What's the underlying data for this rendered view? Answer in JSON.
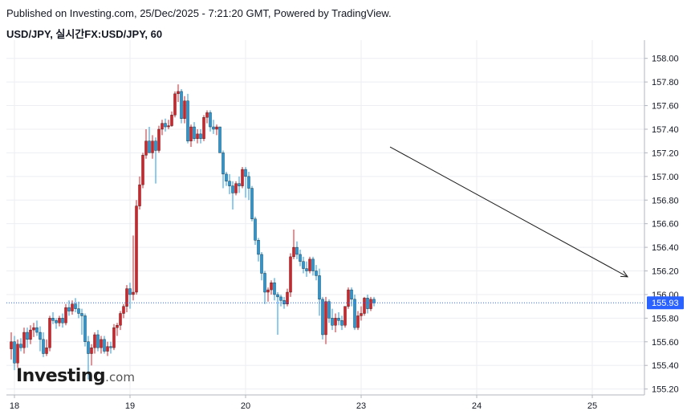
{
  "header": {
    "published": "Published on Investing.com, 25/Dec/2025 - 7:21:20 GMT, Powered by TradingView.",
    "symbol": "USD/JPY, 실시간FX:USD/JPY, 60"
  },
  "logo": {
    "main": "Investing",
    "suffix": ".com"
  },
  "colors": {
    "up": "#e31b23",
    "down": "#1e9ae0",
    "grid": "#eceef2",
    "axis": "#b2b5be",
    "price_line": "#2962ff",
    "price_label_bg": "#2962ff",
    "trend_line": "#1c1c1c"
  },
  "chart_data": {
    "type": "candlestick",
    "timeframe": "60",
    "ylim": [
      155.15,
      158.1
    ],
    "y_ticks": [
      "158.00",
      "157.80",
      "157.60",
      "157.40",
      "157.20",
      "157.00",
      "156.80",
      "156.60",
      "156.40",
      "156.20",
      "156.00",
      "155.80",
      "155.60",
      "155.40",
      "155.20"
    ],
    "x_ticks": [
      "18",
      "19",
      "20",
      "23",
      "24",
      "25"
    ],
    "x_tick_index": [
      1,
      37,
      73,
      109,
      145,
      181
    ],
    "last_price": "155.93",
    "last_price_value": 155.93,
    "trend_line": {
      "start": {
        "index": 118,
        "price": 157.25
      },
      "end": {
        "index": 192,
        "price": 156.15
      }
    },
    "candles": [
      {
        "o": 155.54,
        "h": 155.68,
        "l": 155.45,
        "c": 155.6
      },
      {
        "o": 155.6,
        "h": 155.65,
        "l": 155.36,
        "c": 155.42
      },
      {
        "o": 155.42,
        "h": 155.62,
        "l": 155.38,
        "c": 155.58
      },
      {
        "o": 155.58,
        "h": 155.63,
        "l": 155.52,
        "c": 155.55
      },
      {
        "o": 155.55,
        "h": 155.72,
        "l": 155.5,
        "c": 155.68
      },
      {
        "o": 155.68,
        "h": 155.72,
        "l": 155.55,
        "c": 155.62
      },
      {
        "o": 155.62,
        "h": 155.74,
        "l": 155.58,
        "c": 155.7
      },
      {
        "o": 155.7,
        "h": 155.76,
        "l": 155.64,
        "c": 155.72
      },
      {
        "o": 155.72,
        "h": 155.78,
        "l": 155.65,
        "c": 155.68
      },
      {
        "o": 155.68,
        "h": 155.73,
        "l": 155.52,
        "c": 155.62
      },
      {
        "o": 155.62,
        "h": 155.68,
        "l": 155.47,
        "c": 155.5
      },
      {
        "o": 155.5,
        "h": 155.62,
        "l": 155.48,
        "c": 155.55
      },
      {
        "o": 155.55,
        "h": 155.82,
        "l": 155.52,
        "c": 155.8
      },
      {
        "o": 155.8,
        "h": 155.85,
        "l": 155.75,
        "c": 155.78
      },
      {
        "o": 155.78,
        "h": 155.8,
        "l": 155.71,
        "c": 155.76
      },
      {
        "o": 155.76,
        "h": 155.82,
        "l": 155.73,
        "c": 155.8
      },
      {
        "o": 155.8,
        "h": 155.84,
        "l": 155.72,
        "c": 155.76
      },
      {
        "o": 155.76,
        "h": 155.92,
        "l": 155.74,
        "c": 155.89
      },
      {
        "o": 155.89,
        "h": 155.95,
        "l": 155.82,
        "c": 155.86
      },
      {
        "o": 155.86,
        "h": 155.95,
        "l": 155.83,
        "c": 155.92
      },
      {
        "o": 155.92,
        "h": 155.97,
        "l": 155.85,
        "c": 155.88
      },
      {
        "o": 155.88,
        "h": 155.94,
        "l": 155.8,
        "c": 155.84
      },
      {
        "o": 155.84,
        "h": 155.88,
        "l": 155.66,
        "c": 155.82
      },
      {
        "o": 155.82,
        "h": 155.84,
        "l": 155.56,
        "c": 155.6
      },
      {
        "o": 155.6,
        "h": 155.65,
        "l": 155.28,
        "c": 155.5
      },
      {
        "o": 155.5,
        "h": 155.58,
        "l": 155.4,
        "c": 155.55
      },
      {
        "o": 155.55,
        "h": 155.68,
        "l": 155.5,
        "c": 155.66
      },
      {
        "o": 155.66,
        "h": 155.7,
        "l": 155.52,
        "c": 155.55
      },
      {
        "o": 155.55,
        "h": 155.65,
        "l": 155.5,
        "c": 155.62
      },
      {
        "o": 155.62,
        "h": 155.65,
        "l": 155.5,
        "c": 155.52
      },
      {
        "o": 155.52,
        "h": 155.6,
        "l": 155.48,
        "c": 155.56
      },
      {
        "o": 155.56,
        "h": 155.6,
        "l": 155.5,
        "c": 155.55
      },
      {
        "o": 155.55,
        "h": 155.75,
        "l": 155.53,
        "c": 155.72
      },
      {
        "o": 155.72,
        "h": 155.76,
        "l": 155.65,
        "c": 155.74
      },
      {
        "o": 155.74,
        "h": 155.86,
        "l": 155.7,
        "c": 155.84
      },
      {
        "o": 155.84,
        "h": 155.92,
        "l": 155.8,
        "c": 155.9
      },
      {
        "o": 155.9,
        "h": 156.08,
        "l": 155.85,
        "c": 156.05
      },
      {
        "o": 156.05,
        "h": 156.1,
        "l": 155.88,
        "c": 156.0
      },
      {
        "o": 156.0,
        "h": 156.5,
        "l": 155.95,
        "c": 156.02
      },
      {
        "o": 156.02,
        "h": 156.8,
        "l": 156.0,
        "c": 156.75
      },
      {
        "o": 156.75,
        "h": 157.0,
        "l": 156.72,
        "c": 156.93
      },
      {
        "o": 156.93,
        "h": 157.2,
        "l": 156.9,
        "c": 157.18
      },
      {
        "o": 157.18,
        "h": 157.4,
        "l": 157.15,
        "c": 157.3
      },
      {
        "o": 157.3,
        "h": 157.42,
        "l": 157.22,
        "c": 157.2
      },
      {
        "o": 157.2,
        "h": 157.35,
        "l": 157.15,
        "c": 157.3
      },
      {
        "o": 157.3,
        "h": 157.33,
        "l": 156.94,
        "c": 157.22
      },
      {
        "o": 157.22,
        "h": 157.43,
        "l": 157.2,
        "c": 157.4
      },
      {
        "o": 157.4,
        "h": 157.48,
        "l": 157.35,
        "c": 157.45
      },
      {
        "o": 157.45,
        "h": 157.49,
        "l": 157.38,
        "c": 157.42
      },
      {
        "o": 157.42,
        "h": 157.48,
        "l": 157.4,
        "c": 157.43
      },
      {
        "o": 157.43,
        "h": 157.55,
        "l": 157.42,
        "c": 157.52
      },
      {
        "o": 157.52,
        "h": 157.72,
        "l": 157.5,
        "c": 157.7
      },
      {
        "o": 157.7,
        "h": 157.78,
        "l": 157.63,
        "c": 157.72
      },
      {
        "o": 157.72,
        "h": 157.74,
        "l": 157.45,
        "c": 157.49
      },
      {
        "o": 157.49,
        "h": 157.68,
        "l": 157.45,
        "c": 157.64
      },
      {
        "o": 157.64,
        "h": 157.7,
        "l": 157.28,
        "c": 157.3
      },
      {
        "o": 157.3,
        "h": 157.44,
        "l": 157.25,
        "c": 157.42
      },
      {
        "o": 157.42,
        "h": 157.46,
        "l": 157.3,
        "c": 157.32
      },
      {
        "o": 157.32,
        "h": 157.4,
        "l": 157.28,
        "c": 157.36
      },
      {
        "o": 157.36,
        "h": 157.4,
        "l": 157.28,
        "c": 157.32
      },
      {
        "o": 157.32,
        "h": 157.52,
        "l": 157.3,
        "c": 157.5
      },
      {
        "o": 157.5,
        "h": 157.56,
        "l": 157.45,
        "c": 157.54
      },
      {
        "o": 157.54,
        "h": 157.56,
        "l": 157.38,
        "c": 157.42
      },
      {
        "o": 157.42,
        "h": 157.48,
        "l": 157.36,
        "c": 157.4
      },
      {
        "o": 157.4,
        "h": 157.44,
        "l": 157.35,
        "c": 157.42
      },
      {
        "o": 157.42,
        "h": 157.42,
        "l": 157.2,
        "c": 157.2
      },
      {
        "o": 157.2,
        "h": 157.22,
        "l": 156.9,
        "c": 157.02
      },
      {
        "o": 157.02,
        "h": 157.04,
        "l": 156.92,
        "c": 156.96
      },
      {
        "o": 156.96,
        "h": 157.02,
        "l": 156.85,
        "c": 156.92
      },
      {
        "o": 156.92,
        "h": 156.96,
        "l": 156.72,
        "c": 156.86
      },
      {
        "o": 156.86,
        "h": 156.96,
        "l": 156.84,
        "c": 156.94
      },
      {
        "o": 156.94,
        "h": 157.0,
        "l": 156.86,
        "c": 156.92
      },
      {
        "o": 156.92,
        "h": 157.08,
        "l": 156.9,
        "c": 157.06
      },
      {
        "o": 157.06,
        "h": 157.08,
        "l": 156.82,
        "c": 157.0
      },
      {
        "o": 157.0,
        "h": 157.04,
        "l": 156.8,
        "c": 156.9
      },
      {
        "o": 156.9,
        "h": 156.92,
        "l": 156.62,
        "c": 156.64
      },
      {
        "o": 156.64,
        "h": 156.66,
        "l": 156.42,
        "c": 156.46
      },
      {
        "o": 156.46,
        "h": 156.48,
        "l": 156.28,
        "c": 156.34
      },
      {
        "o": 156.34,
        "h": 156.36,
        "l": 156.12,
        "c": 156.18
      },
      {
        "o": 156.18,
        "h": 156.2,
        "l": 155.92,
        "c": 156.02
      },
      {
        "o": 156.02,
        "h": 156.06,
        "l": 155.94,
        "c": 156.04
      },
      {
        "o": 156.04,
        "h": 156.12,
        "l": 156.0,
        "c": 156.1
      },
      {
        "o": 156.1,
        "h": 156.14,
        "l": 155.95,
        "c": 156.0
      },
      {
        "o": 156.0,
        "h": 156.02,
        "l": 155.66,
        "c": 155.98
      },
      {
        "o": 155.98,
        "h": 156.0,
        "l": 155.9,
        "c": 155.95
      },
      {
        "o": 155.95,
        "h": 155.98,
        "l": 155.88,
        "c": 155.92
      },
      {
        "o": 155.92,
        "h": 156.05,
        "l": 155.9,
        "c": 156.02
      },
      {
        "o": 156.02,
        "h": 156.35,
        "l": 155.98,
        "c": 156.32
      },
      {
        "o": 156.32,
        "h": 156.55,
        "l": 156.3,
        "c": 156.4
      },
      {
        "o": 156.4,
        "h": 156.45,
        "l": 156.3,
        "c": 156.34
      },
      {
        "o": 156.34,
        "h": 156.38,
        "l": 156.24,
        "c": 156.28
      },
      {
        "o": 156.28,
        "h": 156.32,
        "l": 156.18,
        "c": 156.22
      },
      {
        "o": 156.22,
        "h": 156.28,
        "l": 156.15,
        "c": 156.2
      },
      {
        "o": 156.2,
        "h": 156.32,
        "l": 156.18,
        "c": 156.3
      },
      {
        "o": 156.3,
        "h": 156.32,
        "l": 156.16,
        "c": 156.2
      },
      {
        "o": 156.2,
        "h": 156.25,
        "l": 156.12,
        "c": 156.16
      },
      {
        "o": 156.16,
        "h": 156.22,
        "l": 155.82,
        "c": 155.96
      },
      {
        "o": 155.96,
        "h": 155.98,
        "l": 155.62,
        "c": 155.66
      },
      {
        "o": 155.66,
        "h": 155.98,
        "l": 155.58,
        "c": 155.94
      },
      {
        "o": 155.94,
        "h": 155.96,
        "l": 155.76,
        "c": 155.8
      },
      {
        "o": 155.8,
        "h": 155.88,
        "l": 155.7,
        "c": 155.74
      },
      {
        "o": 155.74,
        "h": 155.84,
        "l": 155.68,
        "c": 155.8
      },
      {
        "o": 155.8,
        "h": 155.85,
        "l": 155.74,
        "c": 155.78
      },
      {
        "o": 155.78,
        "h": 155.82,
        "l": 155.7,
        "c": 155.74
      },
      {
        "o": 155.74,
        "h": 155.9,
        "l": 155.72,
        "c": 155.9
      },
      {
        "o": 155.9,
        "h": 156.06,
        "l": 155.88,
        "c": 156.04
      },
      {
        "o": 156.04,
        "h": 156.06,
        "l": 155.9,
        "c": 155.96
      },
      {
        "o": 155.96,
        "h": 156.0,
        "l": 155.7,
        "c": 155.72
      },
      {
        "o": 155.72,
        "h": 155.86,
        "l": 155.7,
        "c": 155.82
      },
      {
        "o": 155.82,
        "h": 155.9,
        "l": 155.78,
        "c": 155.84
      },
      {
        "o": 155.84,
        "h": 155.98,
        "l": 155.82,
        "c": 155.97
      },
      {
        "o": 155.97,
        "h": 156.0,
        "l": 155.84,
        "c": 155.88
      },
      {
        "o": 155.88,
        "h": 155.98,
        "l": 155.86,
        "c": 155.96
      },
      {
        "o": 155.96,
        "h": 155.98,
        "l": 155.9,
        "c": 155.93
      }
    ]
  }
}
